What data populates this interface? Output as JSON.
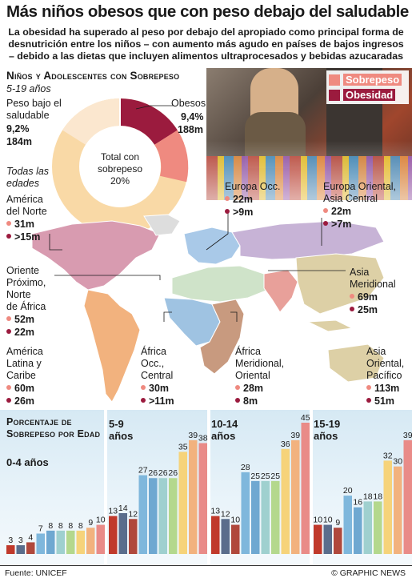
{
  "header": {
    "title": "Más niños obesos que con peso debajo del saludable",
    "subtitle": "La obesidad ha superado al peso por debajo del apropiado como principal forma de desnutrición entre los niños – con aumento más agudo en países de bajos ingresos – debido a las dietas que incluyen alimentos ultraprocesados y bebidas azucaradas"
  },
  "legend": {
    "items": [
      {
        "label": "Sobrepeso",
        "color": "#ef8a80"
      },
      {
        "label": "Obesidad",
        "color": "#9b1b3e"
      }
    ]
  },
  "donut_section": {
    "heading": "Niños y Adolescentes con Sobrepeso",
    "age_note": "5-19 años",
    "underweight": {
      "label": "Peso bajo el saludable",
      "pct": "9,2%",
      "count": "184m"
    },
    "obese": {
      "label": "Obesos",
      "pct": "9,4%",
      "count": "188m"
    },
    "center": {
      "line1": "Total con",
      "line2": "sobrepeso",
      "line3": "20%"
    }
  },
  "regions_note": "Todas las edades",
  "regions": {
    "north_america": {
      "name_l1": "América",
      "name_l2": "del Norte",
      "overweight": "31m",
      "obese": ">15m"
    },
    "europe_west": {
      "name_l1": "Europa Occ.",
      "overweight": "22m",
      "obese": ">9m"
    },
    "europe_east": {
      "name_l1": "Europa Oriental,",
      "name_l2": "Asia Central",
      "overweight": "22m",
      "obese": ">7m"
    },
    "mena": {
      "name_l1": "Oriente",
      "name_l2": "Próximo,",
      "name_l3": "Norte",
      "name_l4": "de África",
      "overweight": "52m",
      "obese": "22m"
    },
    "south_asia": {
      "name_l1": "Asia",
      "name_l2": "Meridional",
      "overweight": "69m",
      "obese": "25m"
    },
    "latam": {
      "name_l1": "América",
      "name_l2": "Latina y",
      "name_l3": "Caribe",
      "overweight": "60m",
      "obese": "26m"
    },
    "africa_wc": {
      "name_l1": "África",
      "name_l2": "Occ.,",
      "name_l3": "Central",
      "overweight": "30m",
      "obese": ">11m"
    },
    "africa_se": {
      "name_l1": "África",
      "name_l2": "Meridional,",
      "name_l3": "Oriental",
      "overweight": "28m",
      "obese": "8m"
    },
    "east_asia": {
      "name_l1": "Asia",
      "name_l2": "Oriental,",
      "name_l3": "Pacífico",
      "overweight": "113m",
      "obese": "51m"
    }
  },
  "map_colors": {
    "north_america": "#d89bb0",
    "latam": "#f2b27e",
    "europe": "#a9c9e8",
    "mena": "#cfe3c9",
    "africa_wc": "#9fc3e2",
    "africa_se": "#c89a7f",
    "south_asia": "#e8a09a",
    "east_asia": "#ddd0a6",
    "eeca": "#c7b3d6",
    "other": "#dddddd"
  },
  "chart_data": {
    "type": "bar",
    "title": "Porcentaje de Sobrepeso por Edad",
    "bar_colors": [
      "#c0392b",
      "#5a6d8c",
      "#b0483c",
      "#7fb7dc",
      "#6fa8d1",
      "#9fd0cf",
      "#b4d88d",
      "#f6d37a",
      "#f2b27e",
      "#e98b88"
    ],
    "panels": [
      {
        "label": "0-4 años",
        "values": [
          3,
          3,
          4,
          7,
          8,
          8,
          8,
          8,
          9,
          10
        ]
      },
      {
        "label": "5-9 años",
        "values": [
          13,
          14,
          12,
          27,
          26,
          26,
          26,
          35,
          39,
          38
        ]
      },
      {
        "label": "10-14 años",
        "values": [
          13,
          12,
          10,
          28,
          25,
          25,
          25,
          36,
          39,
          45
        ]
      },
      {
        "label": "15-19 años",
        "values": [
          10,
          10,
          9,
          20,
          16,
          18,
          18,
          32,
          30,
          39
        ]
      }
    ],
    "ylim": [
      0,
      45
    ]
  },
  "footer": {
    "source": "Fuente: UNICEF",
    "credit": "© GRAPHIC NEWS"
  }
}
